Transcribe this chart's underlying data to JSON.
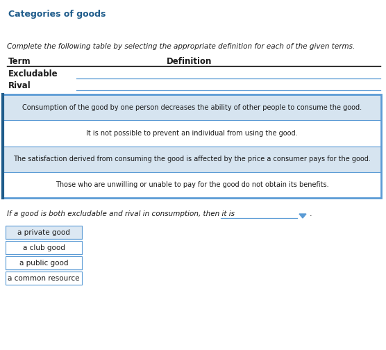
{
  "title": "Categories of goods",
  "title_color": "#1f5c8b",
  "instruction": "Complete the following table by selecting the appropriate definition for each of the given terms.",
  "table_headers": [
    "Term",
    "Definition"
  ],
  "table_rows": [
    "Excludable",
    "Rival"
  ],
  "dropdown_options": [
    "Consumption of the good by one person decreases the ability of other people to consume the good.",
    "It is not possible to prevent an individual from using the good.",
    "The satisfaction derived from consuming the good is affected by the price a consumer pays for the good.",
    "Those who are unwilling or unable to pay for the good do not obtain its benefits."
  ],
  "question_text": "If a good is both excludable and rival in consumption, then it is",
  "answer_choices": [
    "a private good",
    "a club good",
    "a public good",
    "a common resource"
  ],
  "selected_answer": "a private good",
  "bg_color": "#ffffff",
  "text_color": "#1a1a1a",
  "border_color": "#5b9bd5",
  "dropdown_selected_bg": "#d6e4f0",
  "button_bg": "#dce8f3",
  "button_border": "#5b9bd5"
}
